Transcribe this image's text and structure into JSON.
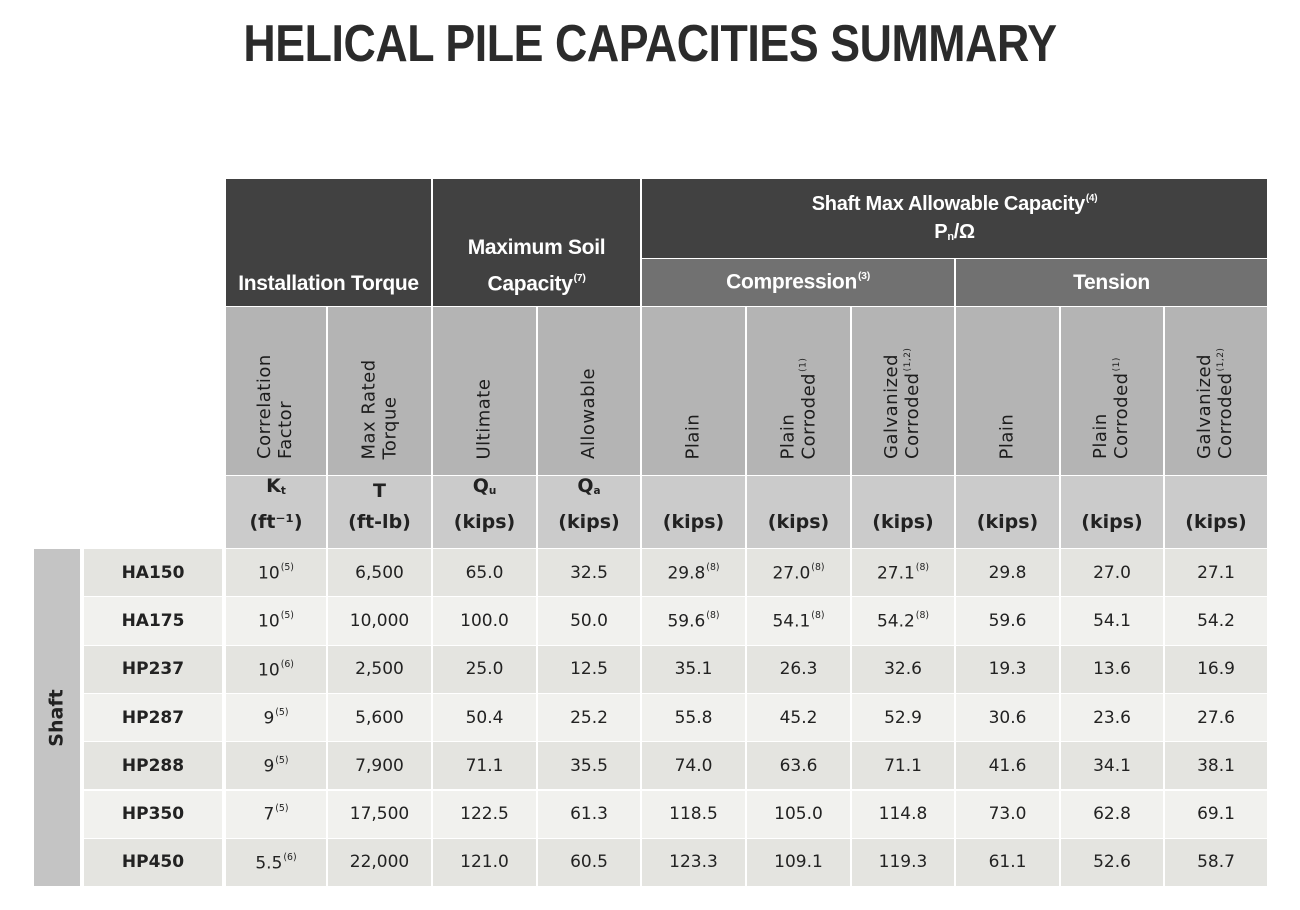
{
  "title": "HELICAL PILE CAPACITIES SUMMARY",
  "header": {
    "installation_torque": "Installation Torque",
    "max_soil": {
      "text": "Maximum Soil Capacity",
      "sup": "(7)"
    },
    "shaft_max": {
      "text": "Shaft Max Allowable Capacity",
      "sup": "(4)"
    },
    "shaft_formula": {
      "text": "P",
      "sub": "n",
      "rest": "/Ω"
    },
    "compression": {
      "text": "Compression",
      "sup": "(3)"
    },
    "tension": "Tension"
  },
  "columns": [
    {
      "lines": [
        "Correlation",
        "Factor"
      ],
      "symbol": {
        "text": "K",
        "sub": "t"
      },
      "unit": "(ft⁻¹)"
    },
    {
      "lines": [
        "Max Rated",
        "Torque"
      ],
      "symbol": "T",
      "unit": "(ft-lb)"
    },
    {
      "lines": [
        "Ultimate"
      ],
      "symbol": {
        "text": "Q",
        "sub": "u"
      },
      "unit": "(kips)"
    },
    {
      "lines": [
        "Allowable"
      ],
      "symbol": {
        "text": "Q",
        "sub": "a"
      },
      "unit": "(kips)"
    },
    {
      "lines": [
        "Plain"
      ],
      "unit": "(kips)"
    },
    {
      "lines": [
        "Plain",
        {
          "text": "Corroded",
          "sup": "(1)"
        }
      ],
      "unit": "(kips)"
    },
    {
      "lines": [
        "Galvanized",
        {
          "text": "Corroded",
          "sup": "(1,2)"
        }
      ],
      "unit": "(kips)"
    },
    {
      "lines": [
        "Plain"
      ],
      "unit": "(kips)"
    },
    {
      "lines": [
        "Plain",
        {
          "text": "Corroded",
          "sup": "(1)"
        }
      ],
      "unit": "(kips)"
    },
    {
      "lines": [
        "Galvanized",
        {
          "text": "Corroded",
          "sup": "(1,2)"
        }
      ],
      "unit": "(kips)"
    }
  ],
  "row_group": "Shaft",
  "rows": [
    {
      "label": "HA150",
      "cells": [
        {
          "text": "10",
          "sup": "(5)"
        },
        "6,500",
        "65.0",
        "32.5",
        {
          "text": "29.8",
          "sup": "(8)"
        },
        {
          "text": "27.0",
          "sup": "(8)"
        },
        {
          "text": "27.1",
          "sup": "(8)"
        },
        "29.8",
        "27.0",
        "27.1"
      ]
    },
    {
      "label": "HA175",
      "cells": [
        {
          "text": "10",
          "sup": "(5)"
        },
        "10,000",
        "100.0",
        "50.0",
        {
          "text": "59.6",
          "sup": "(8)"
        },
        {
          "text": "54.1",
          "sup": "(8)"
        },
        {
          "text": "54.2",
          "sup": "(8)"
        },
        "59.6",
        "54.1",
        "54.2"
      ]
    },
    {
      "label": "HP237",
      "cells": [
        {
          "text": "10",
          "sup": "(6)"
        },
        "2,500",
        "25.0",
        "12.5",
        "35.1",
        "26.3",
        "32.6",
        "19.3",
        "13.6",
        "16.9"
      ]
    },
    {
      "label": "HP287",
      "cells": [
        {
          "text": "9",
          "sup": "(5)"
        },
        "5,600",
        "50.4",
        "25.2",
        "55.8",
        "45.2",
        "52.9",
        "30.6",
        "23.6",
        "27.6"
      ]
    },
    {
      "label": "HP288",
      "cells": [
        {
          "text": "9",
          "sup": "(5)"
        },
        "7,900",
        "71.1",
        "35.5",
        "74.0",
        "63.6",
        "71.1",
        "41.6",
        "34.1",
        "38.1"
      ]
    },
    {
      "label": "HP350",
      "cells": [
        {
          "text": "7",
          "sup": "(5)"
        },
        "17,500",
        "122.5",
        "61.3",
        "118.5",
        "105.0",
        "114.8",
        "73.0",
        "62.8",
        "69.1"
      ]
    },
    {
      "label": "HP450",
      "cells": [
        {
          "text": "5.5",
          "sup": "(6)"
        },
        "22,000",
        "121.0",
        "60.5",
        "123.3",
        "109.1",
        "119.3",
        "61.1",
        "52.6",
        "58.7"
      ]
    }
  ]
}
